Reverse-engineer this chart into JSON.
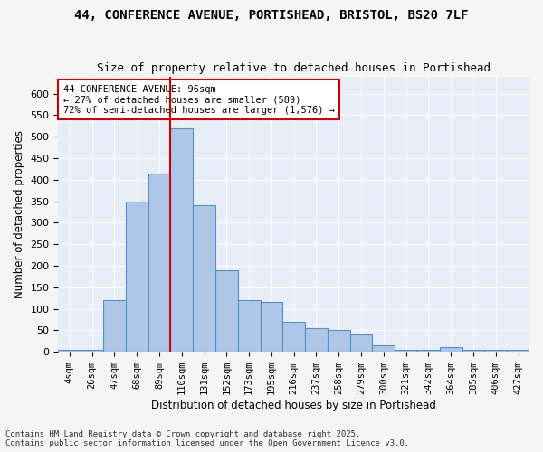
{
  "title_line1": "44, CONFERENCE AVENUE, PORTISHEAD, BRISTOL, BS20 7LF",
  "title_line2": "Size of property relative to detached houses in Portishead",
  "xlabel": "Distribution of detached houses by size in Portishead",
  "ylabel": "Number of detached properties",
  "footer_line1": "Contains HM Land Registry data © Crown copyright and database right 2025.",
  "footer_line2": "Contains public sector information licensed under the Open Government Licence v3.0.",
  "annotation_line1": "44 CONFERENCE AVENUE: 96sqm",
  "annotation_line2": "← 27% of detached houses are smaller (589)",
  "annotation_line3": "72% of semi-detached houses are larger (1,576) →",
  "bar_color": "#aec6e8",
  "bar_edge_color": "#5a8fc0",
  "background_color": "#e8eef7",
  "grid_color": "#ffffff",
  "redline_color": "#cc0000",
  "annotation_box_color": "#cc0000",
  "categories": [
    "4sqm",
    "26sqm",
    "47sqm",
    "68sqm",
    "89sqm",
    "110sqm",
    "131sqm",
    "152sqm",
    "173sqm",
    "195sqm",
    "216sqm",
    "237sqm",
    "258sqm",
    "279sqm",
    "300sqm",
    "321sqm",
    "342sqm",
    "364sqm",
    "385sqm",
    "406sqm",
    "427sqm"
  ],
  "values": [
    5,
    5,
    120,
    350,
    415,
    520,
    340,
    190,
    120,
    115,
    70,
    55,
    50,
    40,
    15,
    5,
    5,
    10,
    5,
    5,
    5
  ],
  "ylim": [
    0,
    640
  ],
  "yticks": [
    0,
    50,
    100,
    150,
    200,
    250,
    300,
    350,
    400,
    450,
    500,
    550,
    600
  ],
  "redline_x": 4.5,
  "figsize": [
    6.0,
    5.0
  ],
  "dpi": 100
}
